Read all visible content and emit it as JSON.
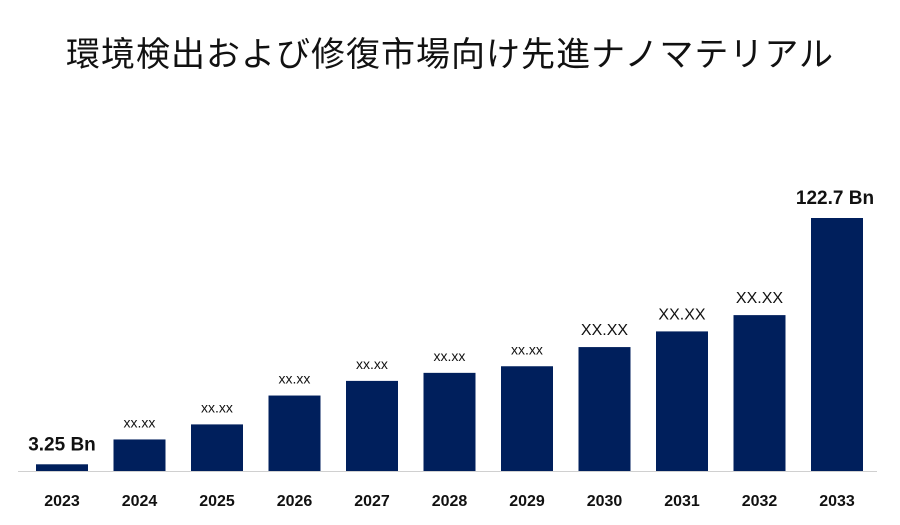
{
  "chart_data": {
    "type": "bar",
    "title": "環境検出および修復市場向け先進ナノマテリアル",
    "categories": [
      "2023",
      "2024",
      "2025",
      "2026",
      "2027",
      "2028",
      "2029",
      "2030",
      "2031",
      "2032",
      "2033"
    ],
    "values": [
      3.25,
      15.3,
      22.6,
      36.6,
      43.7,
      47.6,
      50.8,
      60.1,
      67.7,
      75.6,
      122.7
    ],
    "data_labels": [
      "3.25 Bn",
      "xx.xx",
      "xx.xx",
      "xx.xx",
      "xx.xx",
      "xx.xx",
      "xx.xx",
      "XX.XX",
      "XX.XX",
      "XX.XX",
      "122.7 Bn"
    ],
    "bar_color": "#001f5c",
    "ylim": [
      0,
      122.7
    ],
    "grid": false,
    "legend": "none"
  }
}
